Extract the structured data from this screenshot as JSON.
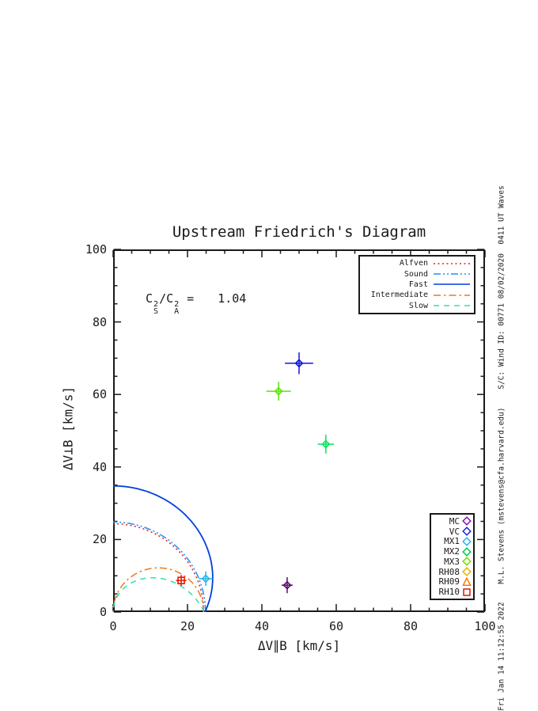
{
  "page": {
    "background": "#ffffff",
    "text_color": "#1a1a1a"
  },
  "chart_data": {
    "type": "line+scatter",
    "title": "Upstream Friedrich's Diagram",
    "xlabel": "ΔV∥B [km/s]",
    "ylabel": "ΔV⊥B [km/s]",
    "xlim": [
      0,
      100
    ],
    "ylim": [
      0,
      100
    ],
    "xticks": [
      0,
      20,
      40,
      60,
      80,
      100
    ],
    "yticks": [
      0,
      20,
      40,
      60,
      80,
      100
    ],
    "minor_tick_step": 5,
    "grid": false,
    "frame_color": "#1a1a1a",
    "annotation": {
      "lhs_base": "C",
      "lhs_sub": "S",
      "lhs_sup": "2",
      "slash": "/",
      "rhs_base": "C",
      "rhs_sub": "A",
      "rhs_sup": "2",
      "equals": "=",
      "value": "1.04"
    },
    "alfven_speed_kms": 24.35,
    "sound_speed_kms": 24.83,
    "mode_curves": [
      {
        "name": "Alfven",
        "type": "circle",
        "radius": 24.35,
        "color": "#dd2020",
        "dash": "2,3.5",
        "width": 1.5
      },
      {
        "name": "Sound",
        "type": "circle",
        "radius": 24.83,
        "color": "#1e90ff",
        "dash": "9,3,2,3,2,3",
        "width": 1.5
      },
      {
        "name": "Fast",
        "type": "fast",
        "radius": 0,
        "color": "#0040dd",
        "dash": "",
        "width": 1.8
      },
      {
        "name": "Intermediate",
        "type": "cos_circle",
        "radius": 24.35,
        "color": "#f07818",
        "dash": "9,4,2.5,4",
        "width": 1.5
      },
      {
        "name": "Slow",
        "type": "slow",
        "radius": 0,
        "color": "#2ee0ae",
        "dash": "7,6",
        "width": 1.5
      }
    ],
    "points": [
      {
        "series": "VC",
        "x": 50.0,
        "y": 68.6,
        "xerr": 3.8,
        "yerr": 3.0,
        "color": "#1414e0",
        "symbol": "diamond"
      },
      {
        "series": "MX3",
        "x": 44.5,
        "y": 60.9,
        "xerr": 3.3,
        "yerr": 2.6,
        "color": "#5ce600",
        "symbol": "diamond"
      },
      {
        "series": "MX2",
        "x": 57.2,
        "y": 46.3,
        "xerr": 2.2,
        "yerr": 2.6,
        "color": "#00e65c",
        "symbol": "diamond"
      },
      {
        "series": "MC",
        "x": 46.8,
        "y": 7.4,
        "xerr": 1.5,
        "yerr": 2.2,
        "color": "#5a0a6e",
        "symbol": "diamond"
      },
      {
        "series": "MX1",
        "x": 24.9,
        "y": 9.2,
        "xerr": 1.8,
        "yerr": 2.0,
        "color": "#28b4f0",
        "symbol": "diamond"
      },
      {
        "series": "RH10",
        "x": 18.3,
        "y": 8.7,
        "xerr": 1.4,
        "yerr": 1.5,
        "color": "#e61400",
        "symbol": "square"
      }
    ],
    "mode_legend": {
      "entries": [
        {
          "label": "Alfven",
          "color": "#dd2020",
          "dash": "2,3.5"
        },
        {
          "label": "Sound",
          "color": "#1e90ff",
          "dash": "9,3,2,3,2,3"
        },
        {
          "label": "Fast",
          "color": "#0040dd",
          "dash": ""
        },
        {
          "label": "Intermediate",
          "color": "#f07818",
          "dash": "9,4,2.5,4"
        },
        {
          "label": "Slow",
          "color": "#2ee0ae",
          "dash": "7,6"
        }
      ]
    },
    "symbol_legend": {
      "entries": [
        {
          "label": "MC",
          "color": "#8c14b4",
          "symbol": "diamond"
        },
        {
          "label": "VC",
          "color": "#1e28e6",
          "symbol": "diamond"
        },
        {
          "label": "MX1",
          "color": "#28b4f0",
          "symbol": "diamond"
        },
        {
          "label": "MX2",
          "color": "#00cc50",
          "symbol": "diamond"
        },
        {
          "label": "MX3",
          "color": "#78dc00",
          "symbol": "diamond"
        },
        {
          "label": "RH08",
          "color": "#e6b400",
          "symbol": "diamond"
        },
        {
          "label": "RH09",
          "color": "#ff7800",
          "symbol": "triangle"
        },
        {
          "label": "RH10",
          "color": "#e61400",
          "symbol": "square"
        }
      ]
    },
    "side_caption": "Fri Jan 14 11:12:55 2022    M.L. Stevens (mstevens@cfa.harvard.edu)    S/C: Wind ID: 00771 08/02/2020  0411 UT Waves"
  }
}
